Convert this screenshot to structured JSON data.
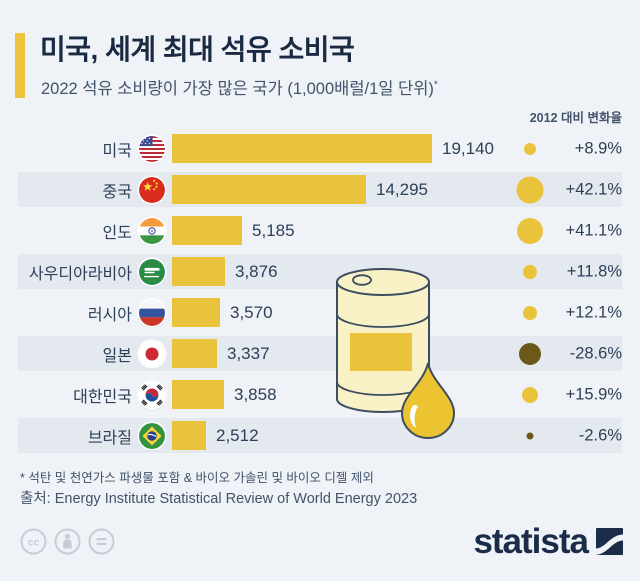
{
  "title": "미국, 세계 최대 석유 소비국",
  "subtitle": "2022 석유 소비량이 가장 많은 국가 (1,000배럴/1일 단위)",
  "subtitle_note_mark": "*",
  "change_header": "2012 대비 변화율",
  "footnote": "* 석탄 및 천연가스 파생물 포함 & 바이오 가솔린 및 바이오 디젤 제외",
  "source": "출처: Energy Institute Statistical Review of World Energy 2023",
  "logo_text": "statista",
  "colors": {
    "background": "#eff2f6",
    "row_stripe": "#e3e9ef",
    "accent_yellow": "#eec53e",
    "bar_yellow": "#e9c33c",
    "bubble_positive": "#e9c33c",
    "bubble_negative": "#6b591b",
    "title_navy": "#1a2a42",
    "text_navy": "#2d4057",
    "muted_navy": "#42536a"
  },
  "chart_data": {
    "type": "bar",
    "title": "2022 석유 소비량이 가장 많은 국가",
    "unit": "1,000배럴/1일",
    "xlabel": "",
    "ylabel": "",
    "xlim": [
      0,
      20000
    ],
    "legend": "2012 대비 변화율 (버블 크기 = 변화율 절대값)",
    "rows": [
      {
        "country": "미국",
        "flag": "usa-flag",
        "value": 19140,
        "value_label": "19,140",
        "change_pct": 8.9,
        "change_label": "+8.9%"
      },
      {
        "country": "중국",
        "flag": "china-flag",
        "value": 14295,
        "value_label": "14,295",
        "change_pct": 42.1,
        "change_label": "+42.1%"
      },
      {
        "country": "인도",
        "flag": "india-flag",
        "value": 5185,
        "value_label": "5,185",
        "change_pct": 41.1,
        "change_label": "+41.1%"
      },
      {
        "country": "사우디아라비아",
        "flag": "saudi-arabia-flag",
        "value": 3876,
        "value_label": "3,876",
        "change_pct": 11.8,
        "change_label": "+11.8%"
      },
      {
        "country": "러시아",
        "flag": "russia-flag",
        "value": 3570,
        "value_label": "3,570",
        "change_pct": 12.1,
        "change_label": "+12.1%"
      },
      {
        "country": "일본",
        "flag": "japan-flag",
        "value": 3337,
        "value_label": "3,337",
        "change_pct": -28.6,
        "change_label": "-28.6%"
      },
      {
        "country": "대한민국",
        "flag": "south-korea-flag",
        "value": 3858,
        "value_label": "3,858",
        "change_pct": 15.9,
        "change_label": "+15.9%"
      },
      {
        "country": "브라질",
        "flag": "brazil-flag",
        "value": 2512,
        "value_label": "2,512",
        "change_pct": -2.6,
        "change_label": "-2.6%"
      }
    ]
  },
  "cc_icons": [
    "cc",
    "attribution-person",
    "no-derivatives-equals"
  ]
}
